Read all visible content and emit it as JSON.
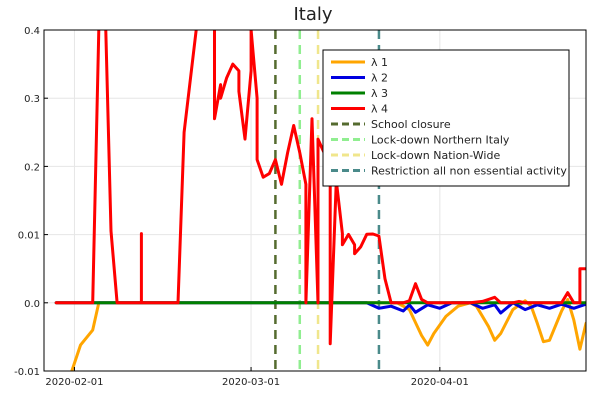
{
  "chart_data": {
    "type": "line",
    "title": "Italy",
    "xlabel": "",
    "ylabel": "",
    "x_domain": [
      "2020-01-27",
      "2020-04-25"
    ],
    "y_ticks": [
      {
        "value": -0.01,
        "label": "-0.01"
      },
      {
        "value": 0.0,
        "label": "0.0"
      },
      {
        "value": 0.01,
        "label": "0.01"
      },
      {
        "value": 0.2,
        "label": "0.2"
      },
      {
        "value": 0.3,
        "label": "0.3"
      },
      {
        "value": 0.4,
        "label": "0.4"
      }
    ],
    "x_ticks": [
      {
        "value": "2020-02-01",
        "label": "2020-02-01"
      },
      {
        "value": "2020-03-01",
        "label": "2020-03-01"
      },
      {
        "value": "2020-04-01",
        "label": "2020-04-01"
      }
    ],
    "grid": true,
    "legend_position": "top-right",
    "series": [
      {
        "name": "λ 1",
        "color": "#FFA500",
        "points": [
          [
            "2020-01-29",
            -0.0156
          ],
          [
            "2020-01-31",
            -0.0115
          ],
          [
            "2020-02-02",
            -0.0062
          ],
          [
            "2020-02-04",
            -0.004
          ],
          [
            "2020-02-05",
            0.0
          ],
          [
            "2020-02-20",
            0.0
          ],
          [
            "2020-03-15",
            0.0
          ],
          [
            "2020-03-25",
            0.0
          ],
          [
            "2020-03-27",
            -0.001
          ],
          [
            "2020-03-29",
            -0.0048
          ],
          [
            "2020-03-30",
            -0.0062
          ],
          [
            "2020-03-31",
            -0.0045
          ],
          [
            "2020-04-02",
            -0.002
          ],
          [
            "2020-04-04",
            -0.0005
          ],
          [
            "2020-04-06",
            0.0
          ],
          [
            "2020-04-07",
            -0.0005
          ],
          [
            "2020-04-09",
            -0.0035
          ],
          [
            "2020-04-10",
            -0.0055
          ],
          [
            "2020-04-11",
            -0.0045
          ],
          [
            "2020-04-13",
            -0.001
          ],
          [
            "2020-04-15",
            0.0003
          ],
          [
            "2020-04-16",
            -0.0005
          ],
          [
            "2020-04-17",
            -0.003
          ],
          [
            "2020-04-18",
            -0.0057
          ],
          [
            "2020-04-19",
            -0.0055
          ],
          [
            "2020-04-21",
            -0.0012
          ],
          [
            "2020-04-22",
            0.0005
          ],
          [
            "2020-04-23",
            -0.0025
          ],
          [
            "2020-04-24",
            -0.0068
          ],
          [
            "2020-04-25",
            -0.003
          ]
        ]
      },
      {
        "name": "λ 2",
        "color": "#0000E0",
        "points": [
          [
            "2020-01-29",
            0.0
          ],
          [
            "2020-03-20",
            0.0
          ],
          [
            "2020-03-22",
            -0.0008
          ],
          [
            "2020-03-24",
            -0.0005
          ],
          [
            "2020-03-26",
            -0.0012
          ],
          [
            "2020-03-27",
            -0.0003
          ],
          [
            "2020-03-28",
            -0.0014
          ],
          [
            "2020-03-30",
            -0.0003
          ],
          [
            "2020-04-01",
            -0.0008
          ],
          [
            "2020-04-03",
            0.0
          ],
          [
            "2020-04-06",
            0.0
          ],
          [
            "2020-04-08",
            -0.0008
          ],
          [
            "2020-04-10",
            -0.0003
          ],
          [
            "2020-04-11",
            -0.0015
          ],
          [
            "2020-04-13",
            0.0
          ],
          [
            "2020-04-15",
            -0.001
          ],
          [
            "2020-04-17",
            -0.0003
          ],
          [
            "2020-04-19",
            -0.0008
          ],
          [
            "2020-04-21",
            -0.0002
          ],
          [
            "2020-04-23",
            -0.0008
          ],
          [
            "2020-04-25",
            -0.0002
          ]
        ]
      },
      {
        "name": "λ 3",
        "color": "#008000",
        "points": [
          [
            "2020-01-29",
            0.0
          ],
          [
            "2020-02-10",
            0.0
          ],
          [
            "2020-02-15",
            0.0
          ],
          [
            "2020-02-29",
            0.0
          ],
          [
            "2020-03-05",
            0.0
          ],
          [
            "2020-03-10",
            0.0
          ],
          [
            "2020-03-15",
            0.0
          ],
          [
            "2020-03-20",
            0.0
          ],
          [
            "2020-04-01",
            0.0
          ],
          [
            "2020-04-10",
            0.0
          ],
          [
            "2020-04-20",
            0.0
          ],
          [
            "2020-04-25",
            0.0
          ]
        ]
      },
      {
        "name": "λ 4",
        "color": "#FF0000",
        "points": [
          [
            "2020-01-29",
            0.0
          ],
          [
            "2020-02-04",
            0.0
          ],
          [
            "2020-02-05",
            0.4
          ],
          [
            "2020-02-06",
            0.45
          ],
          [
            "2020-02-07",
            0.02
          ],
          [
            "2020-02-08",
            0.0
          ],
          [
            "2020-02-12",
            0.0
          ],
          [
            "2020-02-12",
            0.0128
          ],
          [
            "2020-02-12",
            0.0
          ],
          [
            "2020-02-18",
            0.0
          ],
          [
            "2020-02-19",
            0.25
          ],
          [
            "2020-02-21",
            0.4
          ],
          [
            "2020-02-22",
            0.48
          ],
          [
            "2020-02-24",
            0.42
          ],
          [
            "2020-02-24",
            0.38
          ],
          [
            "2020-02-24",
            0.27
          ],
          [
            "2020-02-25",
            0.32
          ],
          [
            "2020-02-25",
            0.3
          ],
          [
            "2020-02-26",
            0.33
          ],
          [
            "2020-02-27",
            0.35
          ],
          [
            "2020-02-28",
            0.34
          ],
          [
            "2020-02-28",
            0.31
          ],
          [
            "2020-02-29",
            0.24
          ],
          [
            "2020-03-01",
            0.34
          ],
          [
            "2020-03-01",
            0.4
          ],
          [
            "2020-03-02",
            0.3
          ],
          [
            "2020-03-02",
            0.21
          ],
          [
            "2020-03-03",
            0.17
          ],
          [
            "2020-03-04",
            0.18
          ],
          [
            "2020-03-05",
            0.21
          ],
          [
            "2020-03-06",
            0.15
          ],
          [
            "2020-03-07",
            0.22
          ],
          [
            "2020-03-08",
            0.26
          ],
          [
            "2020-03-09",
            0.22
          ],
          [
            "2020-03-10",
            0.15
          ],
          [
            "2020-03-10",
            0.0
          ],
          [
            "2020-03-11",
            0.27
          ],
          [
            "2020-03-12",
            0.0
          ],
          [
            "2020-03-12",
            0.24
          ],
          [
            "2020-03-13",
            0.22
          ],
          [
            "2020-03-14",
            0.19
          ],
          [
            "2020-03-14",
            -0.006
          ],
          [
            "2020-03-15",
            0.16
          ],
          [
            "2020-03-16",
            0.0125
          ],
          [
            "2020-03-16",
            0.0085
          ],
          [
            "2020-03-17",
            0.0105
          ],
          [
            "2020-03-18",
            0.0085
          ],
          [
            "2020-03-18",
            0.0072
          ],
          [
            "2020-03-19",
            0.0082
          ],
          [
            "2020-03-20",
            0.011
          ],
          [
            "2020-03-21",
            0.0118
          ],
          [
            "2020-03-22",
            0.0098
          ],
          [
            "2020-03-23",
            0.0035
          ],
          [
            "2020-03-24",
            0.0
          ],
          [
            "2020-03-26",
            0.0
          ],
          [
            "2020-03-27",
            0.0003
          ],
          [
            "2020-03-28",
            0.0028
          ],
          [
            "2020-03-29",
            0.0005
          ],
          [
            "2020-03-30",
            0.0
          ],
          [
            "2020-04-02",
            0.0
          ],
          [
            "2020-04-04",
            0.0
          ],
          [
            "2020-04-06",
            0.0
          ],
          [
            "2020-04-08",
            0.0002
          ],
          [
            "2020-04-09",
            0.0005
          ],
          [
            "2020-04-10",
            0.0008
          ],
          [
            "2020-04-11",
            0.0
          ],
          [
            "2020-04-13",
            0.0
          ],
          [
            "2020-04-14",
            0.0002
          ],
          [
            "2020-04-15",
            0.0
          ],
          [
            "2020-04-17",
            0.0
          ],
          [
            "2020-04-19",
            0.0
          ],
          [
            "2020-04-21",
            0.0
          ],
          [
            "2020-04-22",
            0.0015
          ],
          [
            "2020-04-23",
            0.0
          ],
          [
            "2020-04-24",
            0.0
          ],
          [
            "2020-04-24",
            0.005
          ],
          [
            "2020-04-25",
            0.005
          ]
        ]
      }
    ],
    "vlines": [
      {
        "name": "School closure",
        "x": "2020-03-05",
        "color": "#556B2F"
      },
      {
        "name": "Lock-down Northern Italy",
        "x": "2020-03-09",
        "color": "#90EE90"
      },
      {
        "name": "Lock-down Nation-Wide",
        "x": "2020-03-12",
        "color": "#F0E68C"
      },
      {
        "name": "Restriction all non essential activity",
        "x": "2020-03-22",
        "color": "#4A8A8A"
      }
    ]
  }
}
